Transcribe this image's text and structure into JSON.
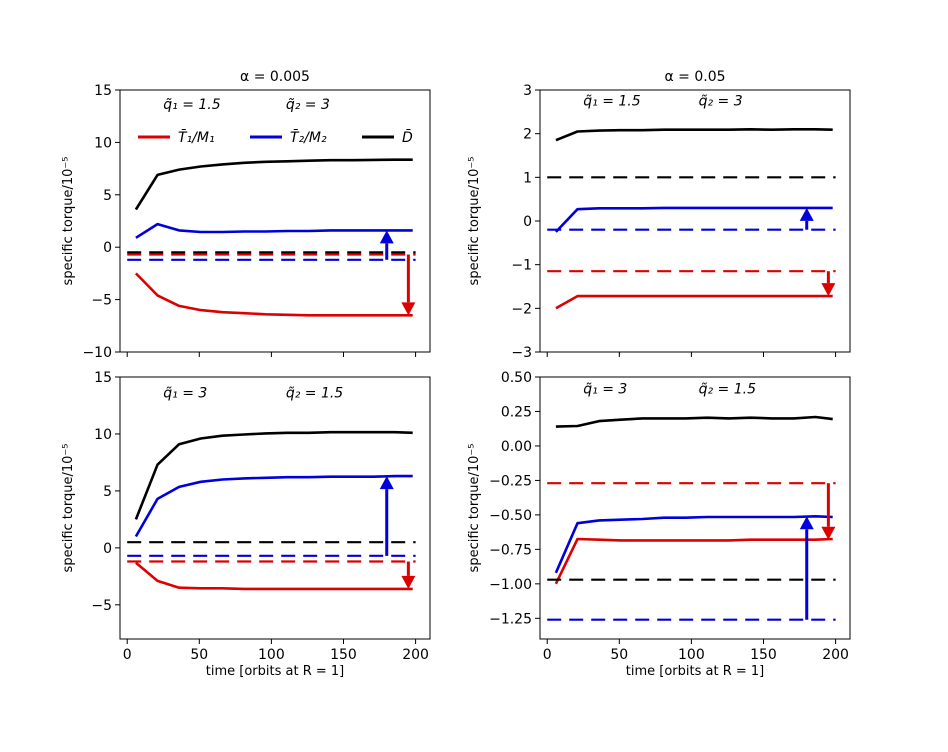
{
  "chart_data": [
    {
      "type": "line",
      "title": "α = 0.005",
      "ylabel": "specific torque/10⁻⁵",
      "xlabel": "",
      "xlim": [
        -5,
        210
      ],
      "ylim": [
        -10,
        15
      ],
      "xticks": [
        0,
        50,
        100,
        150,
        200
      ],
      "xtick_labels": [
        "",
        "",
        "",
        "",
        ""
      ],
      "yticks": [
        -10,
        -5,
        0,
        5,
        10,
        15
      ],
      "ytick_labels": [
        "−10",
        "−5",
        "0",
        "5",
        "10",
        "15"
      ],
      "annotations": [
        {
          "text": "q̃₁ = 1.5",
          "color": "#dd0000",
          "x": 25,
          "y": 13.2
        },
        {
          "text": "q̃₂ = 3",
          "color": "#0000dd",
          "x": 110,
          "y": 13.2
        }
      ],
      "legend": [
        {
          "label": "T̄₁/M₁",
          "color": "#dd0000"
        },
        {
          "label": "T̄₂/M₂",
          "color": "#0000dd"
        },
        {
          "label": "D̄",
          "color": "#000000"
        }
      ],
      "series": [
        {
          "color": "#000000",
          "style": "solid",
          "x": [
            6,
            21,
            36,
            51,
            66,
            81,
            96,
            111,
            126,
            141,
            156,
            171,
            186,
            198
          ],
          "y": [
            3.6,
            6.9,
            7.4,
            7.7,
            7.9,
            8.05,
            8.15,
            8.2,
            8.25,
            8.3,
            8.3,
            8.33,
            8.35,
            8.35
          ]
        },
        {
          "color": "#0000dd",
          "style": "solid",
          "x": [
            6,
            21,
            36,
            51,
            66,
            81,
            96,
            111,
            126,
            141,
            156,
            171,
            186,
            198
          ],
          "y": [
            0.9,
            2.2,
            1.6,
            1.45,
            1.45,
            1.5,
            1.5,
            1.55,
            1.55,
            1.6,
            1.6,
            1.6,
            1.6,
            1.6
          ]
        },
        {
          "color": "#dd0000",
          "style": "solid",
          "x": [
            6,
            21,
            36,
            51,
            66,
            81,
            96,
            111,
            126,
            141,
            156,
            171,
            186,
            198
          ],
          "y": [
            -2.5,
            -4.6,
            -5.6,
            -6.0,
            -6.2,
            -6.3,
            -6.4,
            -6.45,
            -6.5,
            -6.5,
            -6.5,
            -6.5,
            -6.5,
            -6.5
          ]
        },
        {
          "color": "#000000",
          "style": "dashed",
          "x": [
            0,
            200
          ],
          "y": [
            -0.5,
            -0.5
          ]
        },
        {
          "color": "#dd0000",
          "style": "dashed",
          "x": [
            0,
            200
          ],
          "y": [
            -0.7,
            -0.7
          ]
        },
        {
          "color": "#0000dd",
          "style": "dashed",
          "x": [
            0,
            200
          ],
          "y": [
            -1.2,
            -1.2
          ]
        }
      ],
      "arrows": [
        {
          "color": "#0000dd",
          "x": 180,
          "from": -1.2,
          "to": 1.6
        },
        {
          "color": "#dd0000",
          "x": 195,
          "from": -0.7,
          "to": -6.5
        }
      ]
    },
    {
      "type": "line",
      "title": "α = 0.05",
      "ylabel": "specific torque/10⁻⁵",
      "xlabel": "",
      "xlim": [
        -5,
        210
      ],
      "ylim": [
        -3,
        3
      ],
      "xticks": [
        0,
        50,
        100,
        150,
        200
      ],
      "xtick_labels": [
        "",
        "",
        "",
        "",
        ""
      ],
      "yticks": [
        -3,
        -2,
        -1,
        0,
        1,
        2,
        3
      ],
      "ytick_labels": [
        "−3",
        "−2",
        "−1",
        "0",
        "1",
        "2",
        "3"
      ],
      "annotations": [
        {
          "text": "q̃₁ = 1.5",
          "color": "#dd0000",
          "x": 25,
          "y": 2.65
        },
        {
          "text": "q̃₂ = 3",
          "color": "#0000dd",
          "x": 105,
          "y": 2.65
        }
      ],
      "legend": [],
      "series": [
        {
          "color": "#000000",
          "style": "solid",
          "x": [
            6,
            21,
            36,
            51,
            66,
            81,
            96,
            111,
            126,
            141,
            156,
            171,
            186,
            198
          ],
          "y": [
            1.85,
            2.05,
            2.07,
            2.08,
            2.08,
            2.09,
            2.09,
            2.09,
            2.09,
            2.1,
            2.09,
            2.1,
            2.1,
            2.09
          ]
        },
        {
          "color": "#0000dd",
          "style": "solid",
          "x": [
            6,
            21,
            36,
            51,
            66,
            81,
            96,
            111,
            126,
            141,
            156,
            171,
            186,
            198
          ],
          "y": [
            -0.25,
            0.27,
            0.29,
            0.29,
            0.29,
            0.3,
            0.3,
            0.3,
            0.3,
            0.3,
            0.3,
            0.3,
            0.3,
            0.3
          ]
        },
        {
          "color": "#dd0000",
          "style": "solid",
          "x": [
            6,
            21,
            36,
            51,
            66,
            81,
            96,
            111,
            126,
            141,
            156,
            171,
            186,
            198
          ],
          "y": [
            -2.0,
            -1.72,
            -1.72,
            -1.72,
            -1.72,
            -1.72,
            -1.72,
            -1.72,
            -1.72,
            -1.72,
            -1.72,
            -1.72,
            -1.72,
            -1.72
          ]
        },
        {
          "color": "#000000",
          "style": "dashed",
          "x": [
            0,
            200
          ],
          "y": [
            1.0,
            1.0
          ]
        },
        {
          "color": "#0000dd",
          "style": "dashed",
          "x": [
            0,
            200
          ],
          "y": [
            -0.2,
            -0.2
          ]
        },
        {
          "color": "#dd0000",
          "style": "dashed",
          "x": [
            0,
            200
          ],
          "y": [
            -1.15,
            -1.15
          ]
        }
      ],
      "arrows": [
        {
          "color": "#0000dd",
          "x": 180,
          "from": -0.2,
          "to": 0.3
        },
        {
          "color": "#dd0000",
          "x": 195,
          "from": -1.15,
          "to": -1.72
        }
      ]
    },
    {
      "type": "line",
      "title": "",
      "ylabel": "specific torque/10⁻⁵",
      "xlabel": "time [orbits at R = 1]",
      "xlim": [
        -5,
        210
      ],
      "ylim": [
        -8,
        15
      ],
      "xticks": [
        0,
        50,
        100,
        150,
        200
      ],
      "xtick_labels": [
        "0",
        "50",
        "100",
        "150",
        "200"
      ],
      "yticks": [
        -5,
        0,
        5,
        10,
        15
      ],
      "ytick_labels": [
        "−5",
        "0",
        "5",
        "10",
        "15"
      ],
      "annotations": [
        {
          "text": "q̃₁ = 3",
          "color": "#dd0000",
          "x": 25,
          "y": 13.2
        },
        {
          "text": "q̃₂ = 1.5",
          "color": "#0000dd",
          "x": 110,
          "y": 13.2
        }
      ],
      "legend": [],
      "series": [
        {
          "color": "#000000",
          "style": "solid",
          "x": [
            6,
            21,
            36,
            51,
            66,
            81,
            96,
            111,
            126,
            141,
            156,
            171,
            186,
            198
          ],
          "y": [
            2.5,
            7.3,
            9.1,
            9.6,
            9.85,
            9.95,
            10.05,
            10.1,
            10.1,
            10.15,
            10.15,
            10.15,
            10.15,
            10.1
          ]
        },
        {
          "color": "#0000dd",
          "style": "solid",
          "x": [
            6,
            21,
            36,
            51,
            66,
            81,
            96,
            111,
            126,
            141,
            156,
            171,
            186,
            198
          ],
          "y": [
            1.0,
            4.3,
            5.35,
            5.8,
            6.0,
            6.1,
            6.15,
            6.2,
            6.2,
            6.25,
            6.25,
            6.25,
            6.3,
            6.3
          ]
        },
        {
          "color": "#dd0000",
          "style": "solid",
          "x": [
            6,
            21,
            36,
            51,
            66,
            81,
            96,
            111,
            126,
            141,
            156,
            171,
            186,
            198
          ],
          "y": [
            -1.3,
            -2.9,
            -3.5,
            -3.55,
            -3.55,
            -3.6,
            -3.6,
            -3.6,
            -3.6,
            -3.6,
            -3.6,
            -3.6,
            -3.6,
            -3.6
          ]
        },
        {
          "color": "#000000",
          "style": "dashed",
          "x": [
            0,
            200
          ],
          "y": [
            0.5,
            0.5
          ]
        },
        {
          "color": "#0000dd",
          "style": "dashed",
          "x": [
            0,
            200
          ],
          "y": [
            -0.7,
            -0.7
          ]
        },
        {
          "color": "#dd0000",
          "style": "dashed",
          "x": [
            0,
            200
          ],
          "y": [
            -1.2,
            -1.2
          ]
        }
      ],
      "arrows": [
        {
          "color": "#0000dd",
          "x": 180,
          "from": -0.7,
          "to": 6.3
        },
        {
          "color": "#dd0000",
          "x": 195,
          "from": -1.2,
          "to": -3.6
        }
      ]
    },
    {
      "type": "line",
      "title": "",
      "ylabel": "specific torque/10⁻⁵",
      "xlabel": "time [orbits at R = 1]",
      "xlim": [
        -5,
        210
      ],
      "ylim": [
        -1.4,
        0.5
      ],
      "xticks": [
        0,
        50,
        100,
        150,
        200
      ],
      "xtick_labels": [
        "0",
        "50",
        "100",
        "150",
        "200"
      ],
      "yticks": [
        -1.25,
        -1.0,
        -0.75,
        -0.5,
        -0.25,
        0.0,
        0.25,
        0.5
      ],
      "ytick_labels": [
        "−1.25",
        "−1.00",
        "−0.75",
        "−0.50",
        "−0.25",
        "0.00",
        "0.25",
        "0.50"
      ],
      "annotations": [
        {
          "text": "q̃₁ = 3",
          "color": "#dd0000",
          "x": 25,
          "y": 0.38
        },
        {
          "text": "q̃₂ = 1.5",
          "color": "#0000dd",
          "x": 105,
          "y": 0.38
        }
      ],
      "legend": [],
      "series": [
        {
          "color": "#000000",
          "style": "solid",
          "x": [
            6,
            21,
            36,
            51,
            66,
            81,
            96,
            111,
            126,
            141,
            156,
            171,
            186,
            198
          ],
          "y": [
            0.14,
            0.145,
            0.18,
            0.19,
            0.2,
            0.2,
            0.2,
            0.205,
            0.2,
            0.205,
            0.2,
            0.2,
            0.21,
            0.195
          ]
        },
        {
          "color": "#0000dd",
          "style": "solid",
          "x": [
            6,
            21,
            36,
            51,
            66,
            81,
            96,
            111,
            126,
            141,
            156,
            171,
            186,
            198
          ],
          "y": [
            -0.92,
            -0.56,
            -0.54,
            -0.535,
            -0.53,
            -0.52,
            -0.52,
            -0.515,
            -0.515,
            -0.515,
            -0.515,
            -0.515,
            -0.51,
            -0.515
          ]
        },
        {
          "color": "#dd0000",
          "style": "solid",
          "x": [
            6,
            21,
            36,
            51,
            66,
            81,
            96,
            111,
            126,
            141,
            156,
            171,
            186,
            198
          ],
          "y": [
            -1.0,
            -0.675,
            -0.68,
            -0.685,
            -0.685,
            -0.685,
            -0.685,
            -0.685,
            -0.685,
            -0.68,
            -0.68,
            -0.68,
            -0.68,
            -0.675
          ]
        },
        {
          "color": "#dd0000",
          "style": "dashed",
          "x": [
            0,
            200
          ],
          "y": [
            -0.27,
            -0.27
          ]
        },
        {
          "color": "#000000",
          "style": "dashed",
          "x": [
            0,
            200
          ],
          "y": [
            -0.97,
            -0.97
          ]
        },
        {
          "color": "#0000dd",
          "style": "dashed",
          "x": [
            0,
            200
          ],
          "y": [
            -1.26,
            -1.26
          ]
        }
      ],
      "arrows": [
        {
          "color": "#dd0000",
          "x": 195,
          "from": -0.27,
          "to": -0.68
        },
        {
          "color": "#0000dd",
          "x": 180,
          "from": -1.26,
          "to": -0.51
        }
      ]
    }
  ]
}
